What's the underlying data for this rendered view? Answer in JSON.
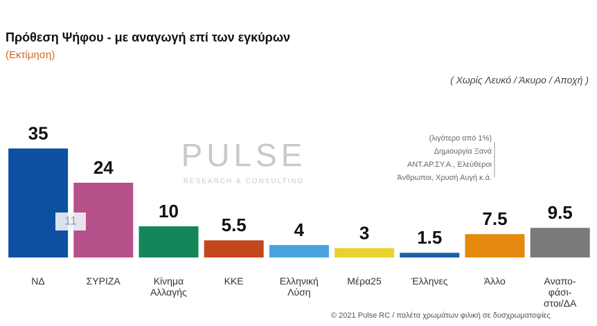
{
  "chart_data": {
    "type": "bar",
    "title": "Πρόθεση Ψήφου - με αναγωγή επί των εγκύρων",
    "subtitle": "(Εκτίμηση)",
    "annotation": "( Χωρίς Λευκό / Άκυρο / Αποχή )",
    "lead_label": "11",
    "note_lines": [
      "(λιγότερο από 1%)",
      "Δημιουργία Ξανά",
      "ΑΝΤ.ΑΡ.ΣΥ.Α., Ελεύθεροι",
      "Άνθρωποι, Χρυσή Αυγή   κ.ά."
    ],
    "watermark": "PULSE",
    "watermark_sub": "RESEARCH & CONSULTING",
    "footer": "© 2021 Pulse RC   /   παλέτα χρωμάτων φιλική σε δυσχρωματοψίες",
    "categories": [
      "ΝΔ",
      "ΣΥΡΙΖΑ",
      "Κίνημα\nΑλλαγής",
      "ΚΚΕ",
      "Ελληνική\nΛύση",
      "Μέρα25",
      "Έλληνες",
      "Άλλο",
      "Αναπο-\nφάσι-\nστοι/ΔΑ"
    ],
    "values": [
      35,
      24,
      10,
      5.5,
      4,
      3,
      1.5,
      7.5,
      9.5
    ],
    "colors": [
      "#0d4fa0",
      "#b5508a",
      "#14875a",
      "#c4461d",
      "#4aa3df",
      "#e8d22b",
      "#1a5fa8",
      "#e58a0f",
      "#7a7a7a"
    ]
  }
}
